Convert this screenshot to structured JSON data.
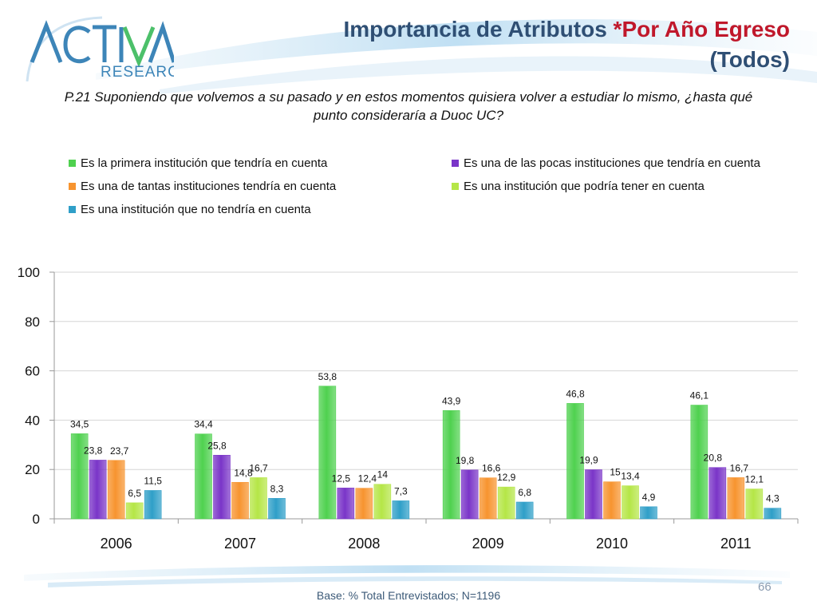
{
  "header": {
    "title_main": "Importancia de Atributos ",
    "title_accent": "*Por Año Egreso",
    "title_line2": "(Todos)"
  },
  "logo": {
    "text_top": "ACTIVA",
    "text_bottom": "RESEARCH",
    "small_mark": "RESEARCH"
  },
  "question": {
    "line1": "P.21 Suponiendo que volvemos a su pasado y en estos momentos quisiera volver a estudiar lo mismo, ¿hasta qué",
    "line2": "punto consideraría a Duoc UC?"
  },
  "footer": {
    "base_text": "Base: % Total Entrevistados; N=1196",
    "page_number": "66"
  },
  "colors": {
    "title": "#2f4f74",
    "accent": "#c0182b",
    "series": [
      "#4fd14f",
      "#7a35c8",
      "#f7942f",
      "#b5e647",
      "#2f9fc8"
    ]
  },
  "chart_data": {
    "type": "bar",
    "categories": [
      "2006",
      "2007",
      "2008",
      "2009",
      "2010",
      "2011"
    ],
    "ylim": [
      0,
      100
    ],
    "yticks": [
      0,
      20,
      40,
      60,
      80,
      100
    ],
    "grid": true,
    "legend_position": "top",
    "series": [
      {
        "name": "Es la  primera institución que tendría en cuenta",
        "values": [
          34.5,
          34.4,
          53.8,
          43.9,
          46.8,
          46.1
        ],
        "labels": [
          "34,5",
          "34,4",
          "53,8",
          "43,9",
          "46,8",
          "46,1"
        ]
      },
      {
        "name": "Es una de las pocas instituciones que tendría en cuenta",
        "values": [
          23.8,
          25.8,
          12.5,
          19.8,
          19.9,
          20.8
        ],
        "labels": [
          "23,8",
          "25,8",
          "12,5",
          "19,8",
          "19,9",
          "20,8"
        ]
      },
      {
        "name": "Es una de tantas instituciones tendría en cuenta",
        "values": [
          23.7,
          14.8,
          12.4,
          16.6,
          15,
          16.7
        ],
        "labels": [
          "23,7",
          "14,8",
          "12,4",
          "16,6",
          "15",
          "16,7"
        ]
      },
      {
        "name": "Es una institución que podría tener en cuenta",
        "values": [
          6.5,
          16.7,
          14,
          12.9,
          13.4,
          12.1
        ],
        "labels": [
          "6,5",
          "16,7",
          "14",
          "12,9",
          "13,4",
          "12,1"
        ]
      },
      {
        "name": "Es una institución que no tendría en cuenta",
        "values": [
          11.5,
          8.3,
          7.3,
          6.8,
          4.9,
          4.3
        ],
        "labels": [
          "11,5",
          "8,3",
          "7,3",
          "6,8",
          "4,9",
          "4,3"
        ]
      }
    ]
  }
}
